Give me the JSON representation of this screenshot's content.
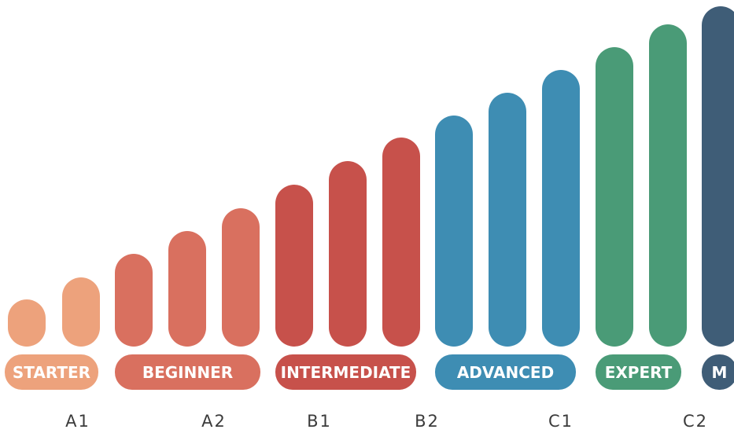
{
  "stages": [
    {
      "label": "STARTER",
      "color": "#eda27c",
      "bar_count": 2
    },
    {
      "label": "BEGINNER",
      "color": "#d9705f",
      "bar_count": 3
    },
    {
      "label": "INTERMEDIATE",
      "color": "#c7514b",
      "bar_count": 3
    },
    {
      "label": "ADVANCED",
      "color": "#3e8db3",
      "bar_count": 3
    },
    {
      "label": "EXPERT",
      "color": "#4a9b77",
      "bar_count": 2
    },
    {
      "label": "M",
      "color": "#3f5d77",
      "bar_count": 1
    }
  ],
  "cefr_levels": [
    "A1",
    "A2",
    "B1",
    "B2",
    "C1",
    "C2"
  ]
}
